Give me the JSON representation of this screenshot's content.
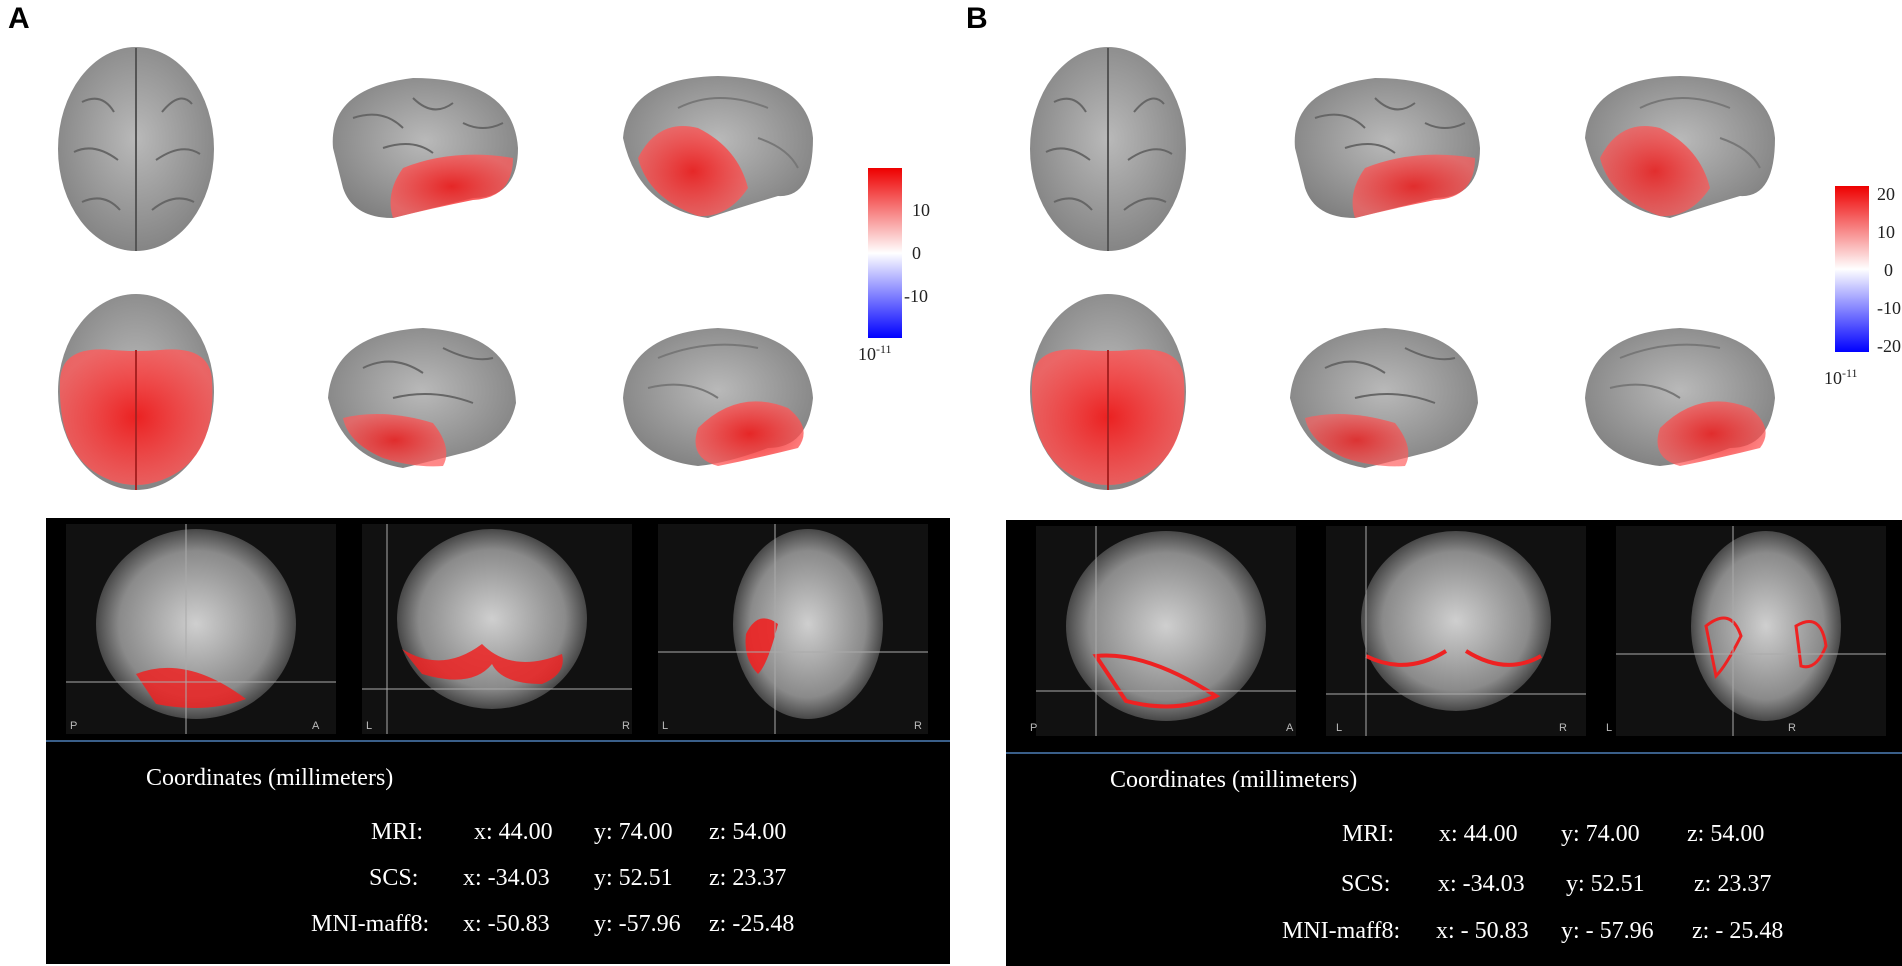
{
  "panels": [
    {
      "letter": "A",
      "colorbar": {
        "ticks": [
          "10",
          "0",
          "-10"
        ],
        "unit_base": "10",
        "unit_exp": "-11"
      },
      "slices": [
        {
          "left_label": "P",
          "right_label": "A"
        },
        {
          "left_label": "L",
          "right_label": "R"
        },
        {
          "left_label": "L",
          "right_label": "R"
        }
      ],
      "coords": {
        "title": "Coordinates (millimeters)",
        "rows": [
          {
            "label": "MRI:",
            "x": "x: 44.00",
            "y": "y: 74.00",
            "z": "z: 54.00"
          },
          {
            "label": "SCS:",
            "x": "x: -34.03",
            "y": "y: 52.51",
            "z": "z: 23.37"
          },
          {
            "label": "MNI-maff8:",
            "x": "x: -50.83",
            "y": "y: -57.96",
            "z": "z: -25.48"
          }
        ]
      }
    },
    {
      "letter": "B",
      "colorbar": {
        "ticks": [
          "20",
          "10",
          "0",
          "-10",
          "-20"
        ],
        "unit_base": "10",
        "unit_exp": "-11"
      },
      "slices": [
        {
          "left_label": "P",
          "right_label": "A"
        },
        {
          "left_label": "L",
          "right_label": "R"
        },
        {
          "left_label": "L",
          "right_label": "R"
        }
      ],
      "coords": {
        "title": "Coordinates (millimeters)",
        "rows": [
          {
            "label": "MRI:",
            "x": "x: 44.00",
            "y": "y: 74.00",
            "z": "z: 54.00"
          },
          {
            "label": "SCS:",
            "x": "x: -34.03",
            "y": "y: 52.51",
            "z": "z: 23.37"
          },
          {
            "label": "MNI-maff8:",
            "x": "x: - 50.83",
            "y": "y: - 57.96",
            "z": "z: - 25.48"
          }
        ]
      }
    }
  ],
  "colors": {
    "activation": "#ee2222",
    "cortex": "#9c9c9c",
    "background": "#000000",
    "divider": "#3a5f8a"
  }
}
